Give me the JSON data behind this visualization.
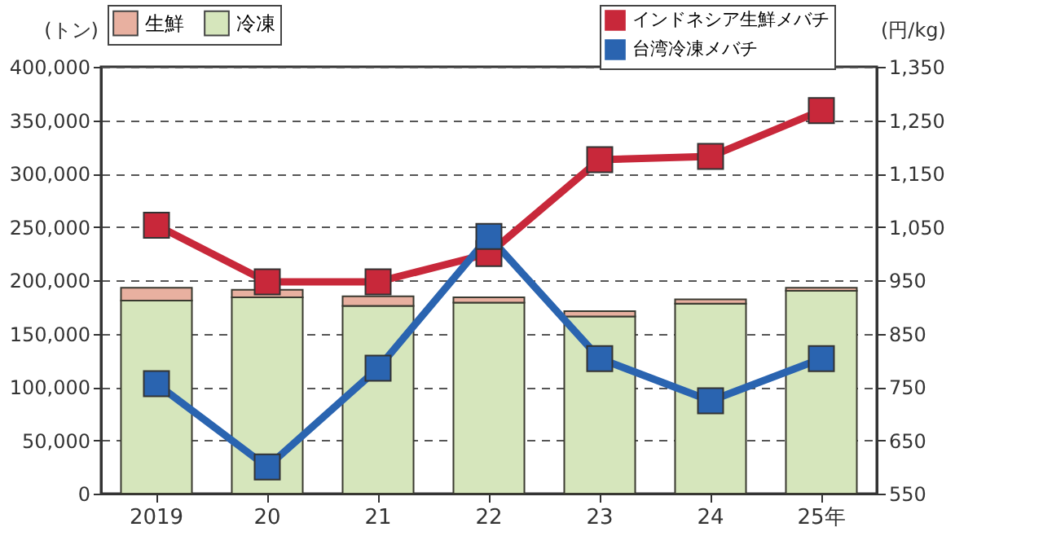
{
  "chart_data": {
    "type": "bar",
    "stacked": true,
    "categories": [
      "2019",
      "20",
      "21",
      "22",
      "23",
      "24",
      "25年"
    ],
    "ylabel": "(トン)",
    "y2label": "(円/kg)",
    "ylim": [
      0,
      400000
    ],
    "yticks": [
      0,
      {
        "value": 50000,
        "label": "50,000"
      },
      {
        "value": 100000,
        "label": "100,000"
      },
      {
        "value": 150000,
        "label": "150,000"
      },
      {
        "value": 200000,
        "label": "200,000"
      },
      {
        "value": 250000,
        "label": "250,000"
      },
      {
        "value": 300000,
        "label": "300,000"
      },
      {
        "value": 350000,
        "label": "350,000"
      },
      {
        "value": 400000,
        "label": "400,000"
      }
    ],
    "y2lim": [
      550,
      1350
    ],
    "y2ticks": [
      550,
      650,
      750,
      850,
      950,
      {
        "value": 1050,
        "label": "1,050"
      },
      {
        "value": 1150,
        "label": "1,150"
      },
      {
        "value": 1250,
        "label": "1,250"
      },
      {
        "value": 1350,
        "label": "1,350"
      }
    ],
    "grid": "y",
    "legend": "top",
    "marker": "square",
    "line_style": "solid",
    "series": [
      {
        "name": "冷凍",
        "color": "#d6e6bc",
        "values": [
          181000,
          184000,
          176000,
          179000,
          166000,
          178000,
          190000
        ]
      },
      {
        "name": "生鮮",
        "color": "#e8b0a0",
        "values": [
          12000,
          7000,
          9000,
          5000,
          5000,
          4000,
          3000
        ]
      },
      {
        "name": "インドネシア生鮮メバチ",
        "type": "line",
        "axis": "y2",
        "color": "#c8283a",
        "values": [
          1053,
          947,
          947,
          1000,
          1176,
          1182,
          1268
        ]
      },
      {
        "name": "台湾冷凍メバチ",
        "type": "line",
        "axis": "y2",
        "color": "#2a64b0",
        "values": [
          756,
          600,
          785,
          1032,
          803,
          724,
          803
        ]
      }
    ]
  }
}
